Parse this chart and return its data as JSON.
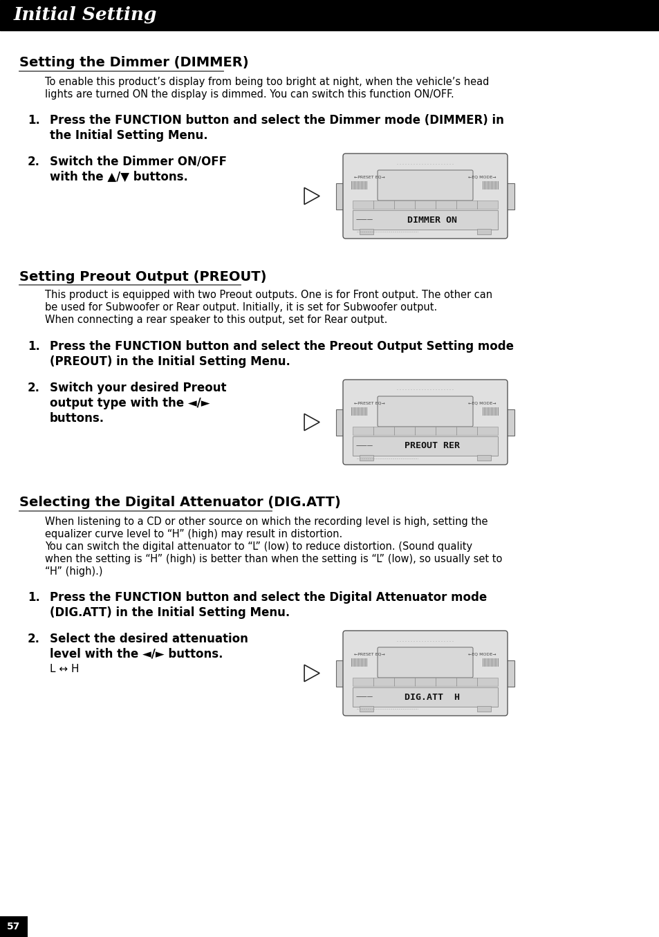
{
  "page_bg": "#ffffff",
  "header_bg": "#000000",
  "header_text": "Initial Setting",
  "header_text_color": "#ffffff",
  "header_font_size": 19,
  "page_number": "57",
  "page_number_bg": "#000000",
  "page_number_color": "#ffffff",
  "sections": [
    {
      "title": "Setting the Dimmer (DIMMER)",
      "body": "To enable this product’s display from being too bright at night, when the vehicle’s head\nlights are turned ON the display is dimmed. You can switch this function ON/OFF.",
      "steps": [
        {
          "number": "1.",
          "text": "Press the FUNCTION button and select the Dimmer mode (DIMMER) in\nthe Initial Setting Menu.",
          "has_image": false
        },
        {
          "number": "2.",
          "text": "Switch the Dimmer ON/OFF\nwith the ▲/▼ buttons.",
          "has_image": true,
          "display_text": "DIMMER ON"
        }
      ]
    },
    {
      "title": "Setting Preout Output (PREOUT)",
      "body": "This product is equipped with two Preout outputs. One is for Front output. The other can\nbe used for Subwoofer or Rear output. Initially, it is set for Subwoofer output.\nWhen connecting a rear speaker to this output, set for Rear output.",
      "steps": [
        {
          "number": "1.",
          "text": "Press the FUNCTION button and select the Preout Output Setting mode\n(PREOUT) in the Initial Setting Menu.",
          "has_image": false
        },
        {
          "number": "2.",
          "text": "Switch your desired Preout\noutput type with the ◄/►\nbuttons.",
          "has_image": true,
          "display_text": "PREOUT RER"
        }
      ]
    },
    {
      "title": "Selecting the Digital Attenuator (DIG.ATT)",
      "body": "When listening to a CD or other source on which the recording level is high, setting the\nequalizer curve level to “H” (high) may result in distortion.\nYou can switch the digital attenuator to “L” (low) to reduce distortion. (Sound quality\nwhen the setting is “H” (high) is better than when the setting is “L” (low), so usually set to\n“H” (high).)",
      "steps": [
        {
          "number": "1.",
          "text": "Press the FUNCTION button and select the Digital Attenuator mode\n(DIG.ATT) in the Initial Setting Menu.",
          "has_image": false
        },
        {
          "number": "2.",
          "text": "Select the desired attenuation\nlevel with the ◄/► buttons.",
          "extra_text": "L ↔ H",
          "has_image": true,
          "display_text": "DIG.ATT  H"
        }
      ]
    }
  ]
}
